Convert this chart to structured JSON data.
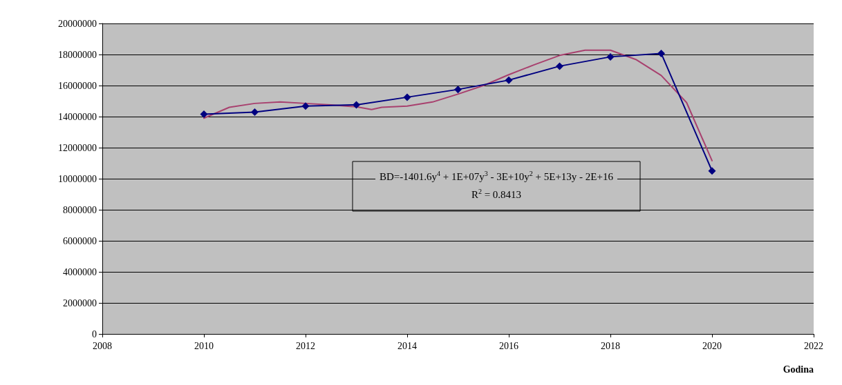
{
  "chart_data": {
    "type": "line",
    "xlabel": "Godina",
    "annotations": [
      "BD=-1401.6y$^{4}$ + 1E+07y$^{3}$ - 3E+10y$^{2}$ + 5E+13y - 2E+16",
      "R$^{2}$ = 0.8413"
    ],
    "x": [
      2010,
      2011,
      2012,
      2013,
      2014,
      2015,
      2016,
      2017,
      2018,
      2019,
      2020
    ],
    "series": [
      {
        "color": "#000080",
        "marker": "diamond",
        "values": [
          14160000,
          14290000,
          14680000,
          14760000,
          15250000,
          15750000,
          16350000,
          17250000,
          17850000,
          18070000,
          10500000
        ]
      },
      {
        "color": "#a8406e",
        "marker": "none",
        "x": [
          2010,
          2010.5,
          2011,
          2011.5,
          2012,
          2012.5,
          2013,
          2013.3,
          2013.5,
          2014,
          2014.5,
          2015,
          2015.5,
          2016,
          2016.5,
          2017,
          2017.5,
          2018,
          2018.5,
          2019,
          2019.5,
          2020
        ],
        "values": [
          13900000,
          14600000,
          14850000,
          14940000,
          14850000,
          14760000,
          14630000,
          14460000,
          14600000,
          14680000,
          14940000,
          15450000,
          16000000,
          16700000,
          17340000,
          17940000,
          18280000,
          18280000,
          17680000,
          16650000,
          14900000,
          11160000
        ]
      }
    ],
    "xlim": [
      2008,
      2022
    ],
    "xticks": [
      2008,
      2010,
      2012,
      2014,
      2016,
      2018,
      2020,
      2022
    ],
    "ylim": [
      0,
      20000000
    ],
    "yticks": [
      0,
      2000000,
      4000000,
      6000000,
      8000000,
      10000000,
      12000000,
      14000000,
      16000000,
      18000000,
      20000000
    ],
    "grid": "y",
    "line_style": "solid"
  }
}
